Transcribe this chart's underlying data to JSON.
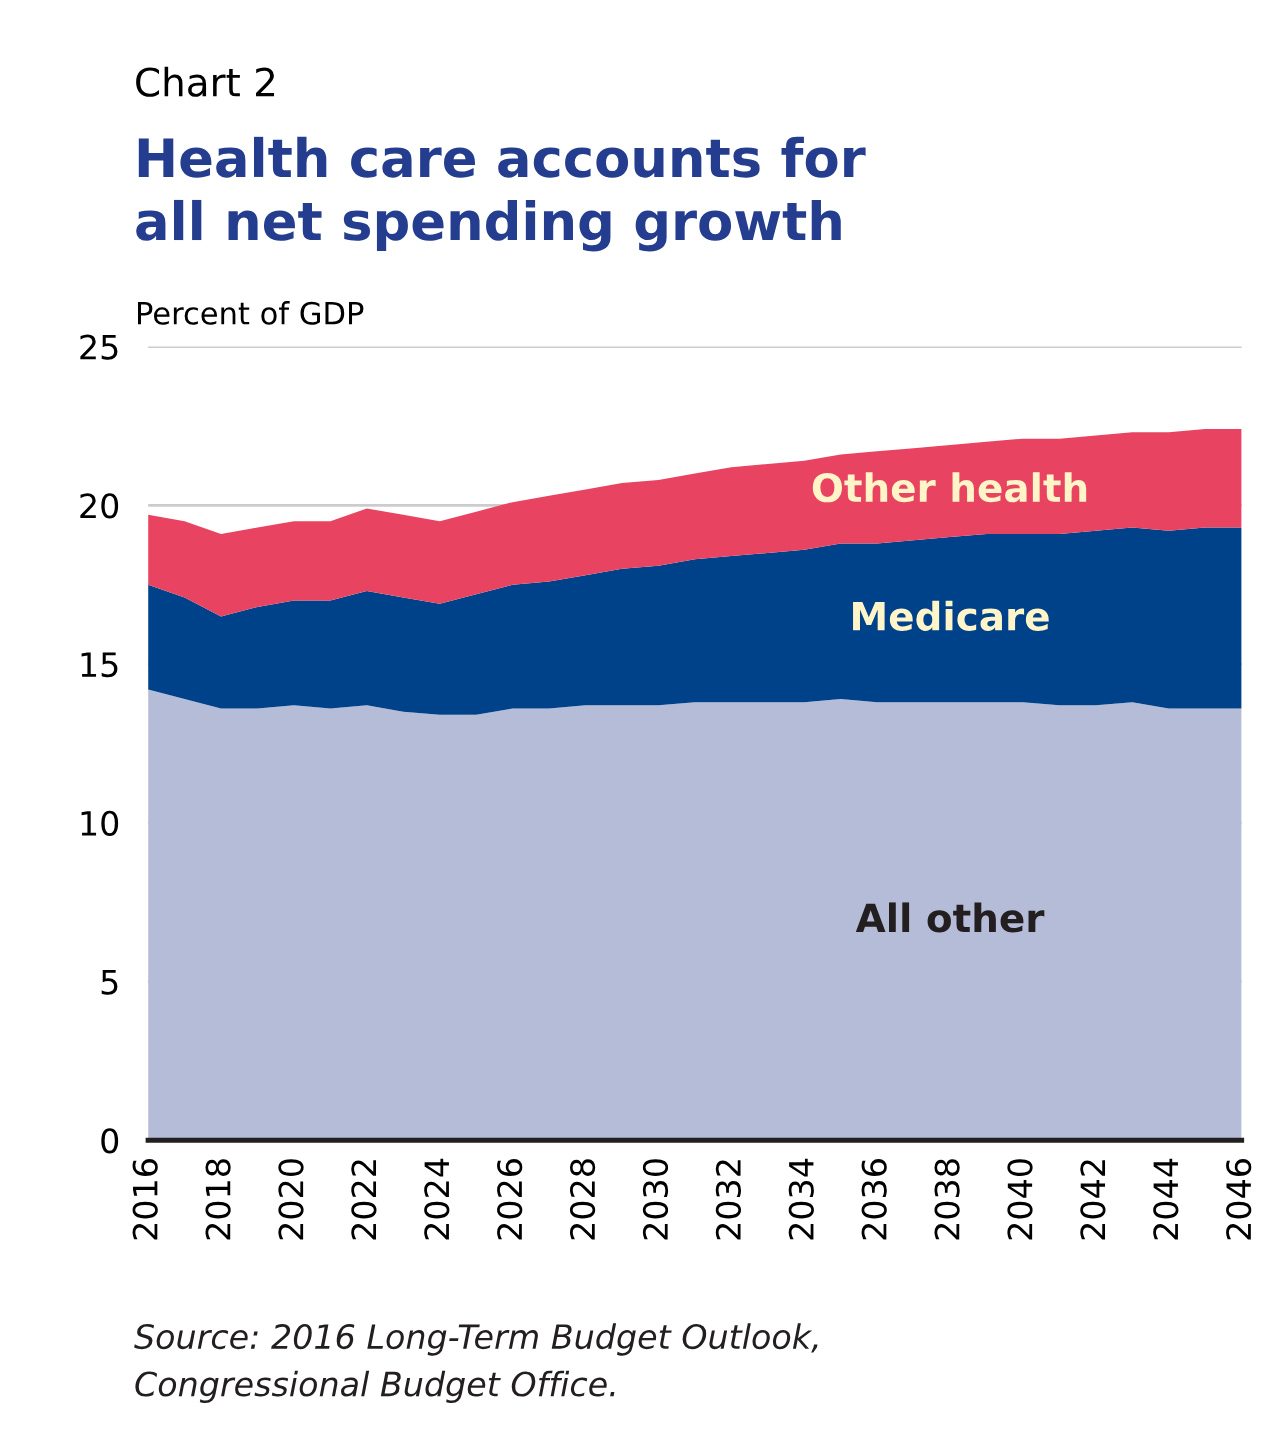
{
  "chart_data": {
    "type": "area",
    "stacked": true,
    "title": "Health care accounts for\nall net spending growth",
    "ylabel": "Percent of GDP",
    "annotations": [
      "Chart 2",
      "Source: 2016 Long-Term Budget Outlook,\nCongressional Budget Office."
    ],
    "x": [
      2016,
      2017,
      2018,
      2019,
      2020,
      2021,
      2022,
      2023,
      2024,
      2025,
      2026,
      2027,
      2028,
      2029,
      2030,
      2031,
      2032,
      2033,
      2034,
      2035,
      2036,
      2037,
      2038,
      2039,
      2040,
      2041,
      2042,
      2043,
      2044,
      2045,
      2046
    ],
    "series": [
      {
        "name": "All other",
        "color": "#b4bcd8",
        "values": [
          14.2,
          13.9,
          13.6,
          13.6,
          13.7,
          13.6,
          13.7,
          13.5,
          13.4,
          13.4,
          13.6,
          13.6,
          13.7,
          13.7,
          13.7,
          13.8,
          13.8,
          13.8,
          13.8,
          13.9,
          13.8,
          13.8,
          13.8,
          13.8,
          13.8,
          13.7,
          13.7,
          13.8,
          13.6,
          13.6,
          13.6
        ]
      },
      {
        "name": "Medicare",
        "color": "#00428a",
        "values": [
          3.3,
          3.2,
          2.9,
          3.2,
          3.3,
          3.4,
          3.6,
          3.6,
          3.5,
          3.8,
          3.9,
          4.0,
          4.1,
          4.3,
          4.4,
          4.5,
          4.6,
          4.7,
          4.8,
          4.9,
          5.0,
          5.1,
          5.2,
          5.3,
          5.3,
          5.4,
          5.5,
          5.5,
          5.6,
          5.7,
          5.7
        ]
      },
      {
        "name": "Other health",
        "color": "#e84462",
        "values": [
          2.2,
          2.4,
          2.6,
          2.5,
          2.5,
          2.5,
          2.6,
          2.6,
          2.6,
          2.6,
          2.6,
          2.7,
          2.7,
          2.7,
          2.7,
          2.7,
          2.8,
          2.8,
          2.8,
          2.8,
          2.9,
          2.9,
          2.9,
          2.9,
          3.0,
          3.0,
          3.0,
          3.0,
          3.1,
          3.1,
          3.1
        ]
      }
    ],
    "xlim": [
      2016,
      2046
    ],
    "xticks": [
      2016,
      2018,
      2020,
      2022,
      2024,
      2026,
      2028,
      2030,
      2032,
      2034,
      2036,
      2038,
      2040,
      2042,
      2044,
      2046
    ],
    "ylim": [
      0,
      25
    ],
    "yticks": [
      0,
      5,
      10,
      15,
      20,
      25
    ],
    "grid": "y",
    "legend": false
  }
}
